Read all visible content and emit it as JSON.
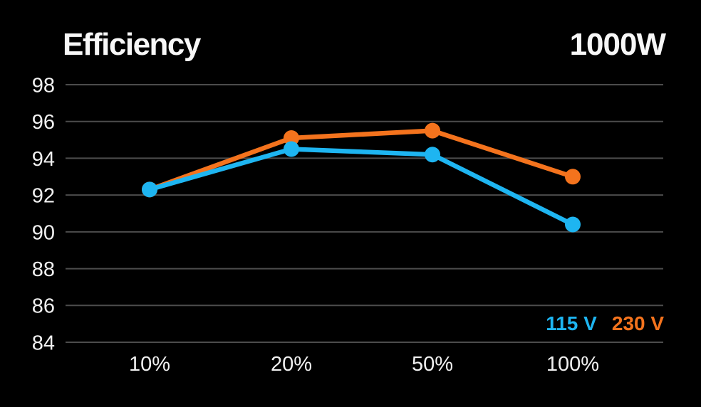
{
  "header": {
    "title": "Efficiency",
    "wattage": "1000W"
  },
  "chart_data": {
    "type": "line",
    "title": "Efficiency",
    "subtitle": "1000W",
    "categories": [
      "10%",
      "20%",
      "50%",
      "100%"
    ],
    "series": [
      {
        "name": "115 V",
        "color": "#1eb5f1",
        "values": [
          92.3,
          94.5,
          94.2,
          90.4
        ]
      },
      {
        "name": "230 V",
        "color": "#f4731d",
        "values": [
          92.3,
          95.1,
          95.5,
          93.0
        ]
      }
    ],
    "ylim": [
      84,
      98
    ],
    "ytick_step": 2,
    "ytick_labels": [
      "98",
      "96",
      "94",
      "92",
      "90",
      "88",
      "86",
      "84"
    ],
    "grid": true,
    "legend_position": "bottom-right",
    "colors": {
      "background": "#000000",
      "grid_line": "#4c4c4c",
      "axis_text": "#f0f0f0",
      "title_text": "#f7f7f7"
    }
  }
}
